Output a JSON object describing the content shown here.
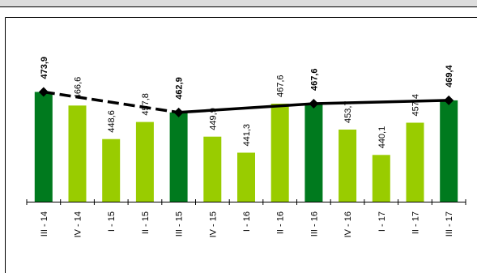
{
  "chart_data": {
    "type": "bar",
    "categories": [
      "III - 14",
      "IV - 14",
      "I - 15",
      "II - 15",
      "III - 15",
      "IV - 15",
      "I - 16",
      "II - 16",
      "III - 16",
      "IV - 16",
      "I - 17",
      "II - 17",
      "III - 17"
    ],
    "series": [
      {
        "values": [
          473.9,
          466.6,
          448.6,
          457.8,
          462.9,
          449.9,
          441.3,
          467.6,
          467.6,
          453.7,
          440.1,
          457.4,
          469.4
        ],
        "value_labels": [
          "473,9",
          "466,6",
          "448,6",
          "457,8",
          "462,9",
          "449,9",
          "441,3",
          "467,6",
          "467,6",
          "453,7",
          "440,1",
          "457,4",
          "469,4"
        ]
      },
      {
        "type": "line",
        "x": [
          "III - 14",
          "III - 15",
          "III - 16",
          "III - 17"
        ],
        "values": [
          473.9,
          462.9,
          467.6,
          469.4
        ],
        "marker": "diamond"
      }
    ],
    "highlight_categories": [
      "III - 14",
      "III - 15",
      "III - 16",
      "III - 17"
    ],
    "ylim": [
      415,
      485
    ],
    "grid": false,
    "title": "",
    "xlabel": "",
    "ylabel": "",
    "colors": {
      "highlight_bar": "#007A1E",
      "regular_bar": "#99CC00",
      "line": "#000000",
      "frame": "#000000",
      "top_band": "#DDDDDD"
    }
  }
}
